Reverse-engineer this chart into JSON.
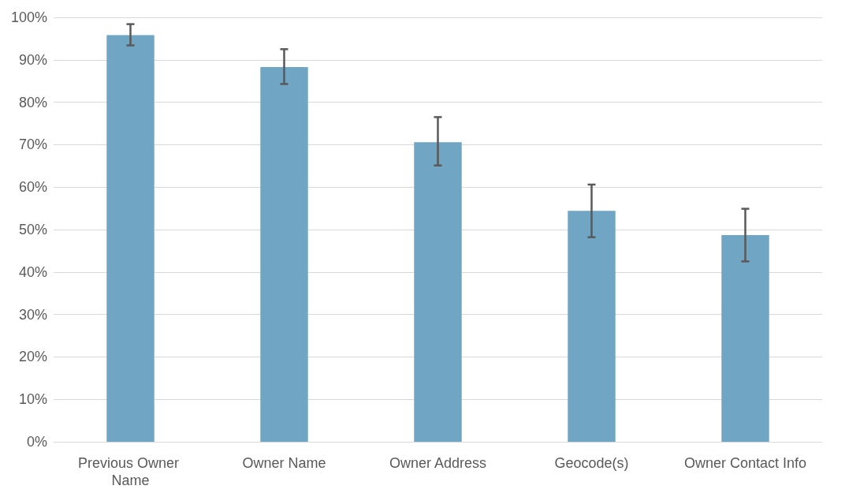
{
  "chart_data": {
    "type": "bar",
    "categories": [
      "Previous Owner Name",
      "Owner Name",
      "Owner Address",
      "Geocode(s)",
      "Owner Contact Info"
    ],
    "values": [
      95.8,
      88.3,
      70.6,
      54.4,
      48.7
    ],
    "errors": [
      [
        93.4,
        98.4
      ],
      [
        84.3,
        92.5
      ],
      [
        65.1,
        76.5
      ],
      [
        48.2,
        60.6
      ],
      [
        42.5,
        54.9
      ]
    ],
    "color": "#71a5c4",
    "ylim": [
      0,
      100
    ],
    "yticks": [
      {
        "value": 0,
        "label": "0%"
      },
      {
        "value": 10,
        "label": "10%"
      },
      {
        "value": 20,
        "label": "20%"
      },
      {
        "value": 30,
        "label": "30%"
      },
      {
        "value": 40,
        "label": "40%"
      },
      {
        "value": 50,
        "label": "50%"
      },
      {
        "value": 60,
        "label": "60%"
      },
      {
        "value": 70,
        "label": "70%"
      },
      {
        "value": 80,
        "label": "80%"
      },
      {
        "value": 90,
        "label": "90%"
      },
      {
        "value": 100,
        "label": "100%"
      }
    ],
    "grid": "y"
  }
}
